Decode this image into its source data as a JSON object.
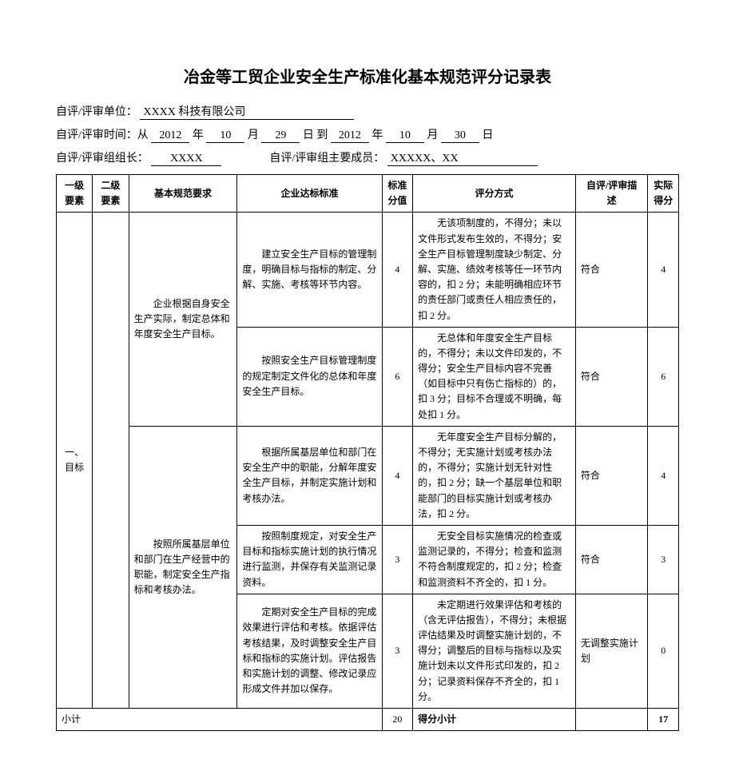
{
  "title": "冶金等工贸企业安全生产标准化基本规范评分记录表",
  "header": {
    "unit_label": "自评/评审单位：",
    "unit": "XXXX 科技有限公司",
    "time_label": "自评/评审时间：从",
    "year1": "2012",
    "month1": "10",
    "day1": "29",
    "to": "到",
    "year2": "2012",
    "month2": "10",
    "day2": "30",
    "y": "年",
    "m": "月",
    "d": "日",
    "leader_label": "自评/评审组组长：",
    "leader": "XXXX",
    "members_label": "自评/评审组主要成员：",
    "members": "XXXXX、XX"
  },
  "cols": {
    "a": "一级要素",
    "b": "二级要素",
    "c": "基本规范要求",
    "d": "企业达标标准",
    "e": "标准分值",
    "f": "评分方式",
    "g": "自评/评审描　　述",
    "h": "实际得分"
  },
  "l1": "一、目标",
  "rows": [
    {
      "req": "　　企业根据自身安全生产实际，制定总体和年度安全生产目标。",
      "std": "　　建立安全生产目标的管理制度，明确目标与指标的制定、分解、实施、考核等环节内容。",
      "sv": "4",
      "method": "　　无该项制度的，不得分；未以文件形式发布生效的，不得分；安全生产目标管理制度缺少制定、分解、实施、绩效考核等任一环节内容的，扣 2 分；未能明确相应环节的责任部门或责任人相应责任的，扣 2 分。",
      "desc": "符合",
      "score": "4"
    },
    {
      "req": "",
      "std": "　　按照安全生产目标管理制度的规定制定文件化的总体和年度安全生产目标。",
      "sv": "6",
      "method": "　　无总体和年度安全生产目标的，不得分；未以文件印发的，不得分；安全生产目标内容不完善（如目标中只有伤亡指标的）的，扣 3 分；目标不合理或不明确，每处扣 1 分。",
      "desc": "符合",
      "score": "6"
    },
    {
      "req": "　　按照所属基层单位和部门在生产经营中的职能，制定安全生产指标和考核办法。",
      "std": "　　根据所属基层单位和部门在安全生产中的职能，分解年度安全生产目标，并制定实施计划和考核办法。",
      "sv": "4",
      "method": "　　无年度安全生产目标分解的，不得分；无实施计划或考核办法的，不得分；实施计划无针对性的，扣 2 分；缺一个基层单位和职能部门的目标实施计划或考核办法，扣 2 分。",
      "desc": "符合",
      "score": "4"
    },
    {
      "req": "",
      "std": "　　按照制度规定，对安全生产目标和指标实施计划的执行情况进行监测，并保存有关监测记录资料。",
      "sv": "3",
      "method": "　　无安全目标实施情况的检查或监测记录的，不得分；检查和监测不符合制度规定的，扣 2 分；检查和监测资料不齐全的，扣 1 分。",
      "desc": "符合",
      "score": "3"
    },
    {
      "req": "",
      "std": "　　定期对安全生产目标的完成效果进行评估和考核。依据评估考核结果，及时调整安全生产目标和指标的实施计划。评估报告和实施计划的调整、修改记录应形成文件并加以保存。",
      "sv": "3",
      "method": "　　未定期进行效果评估和考核的（含无评估报告），不得分；未根据评估结果及时调整实施计划的，不得分；调整后的目标与指标以及实施计划未以文件形式印发的，扣 2 分；记录资料保存不齐全的，扣 1 分。",
      "desc": "无调整实施计划",
      "score": "0"
    }
  ],
  "subtotal": {
    "label": "小计",
    "sv": "20",
    "method": "得分小计",
    "score": "17"
  }
}
